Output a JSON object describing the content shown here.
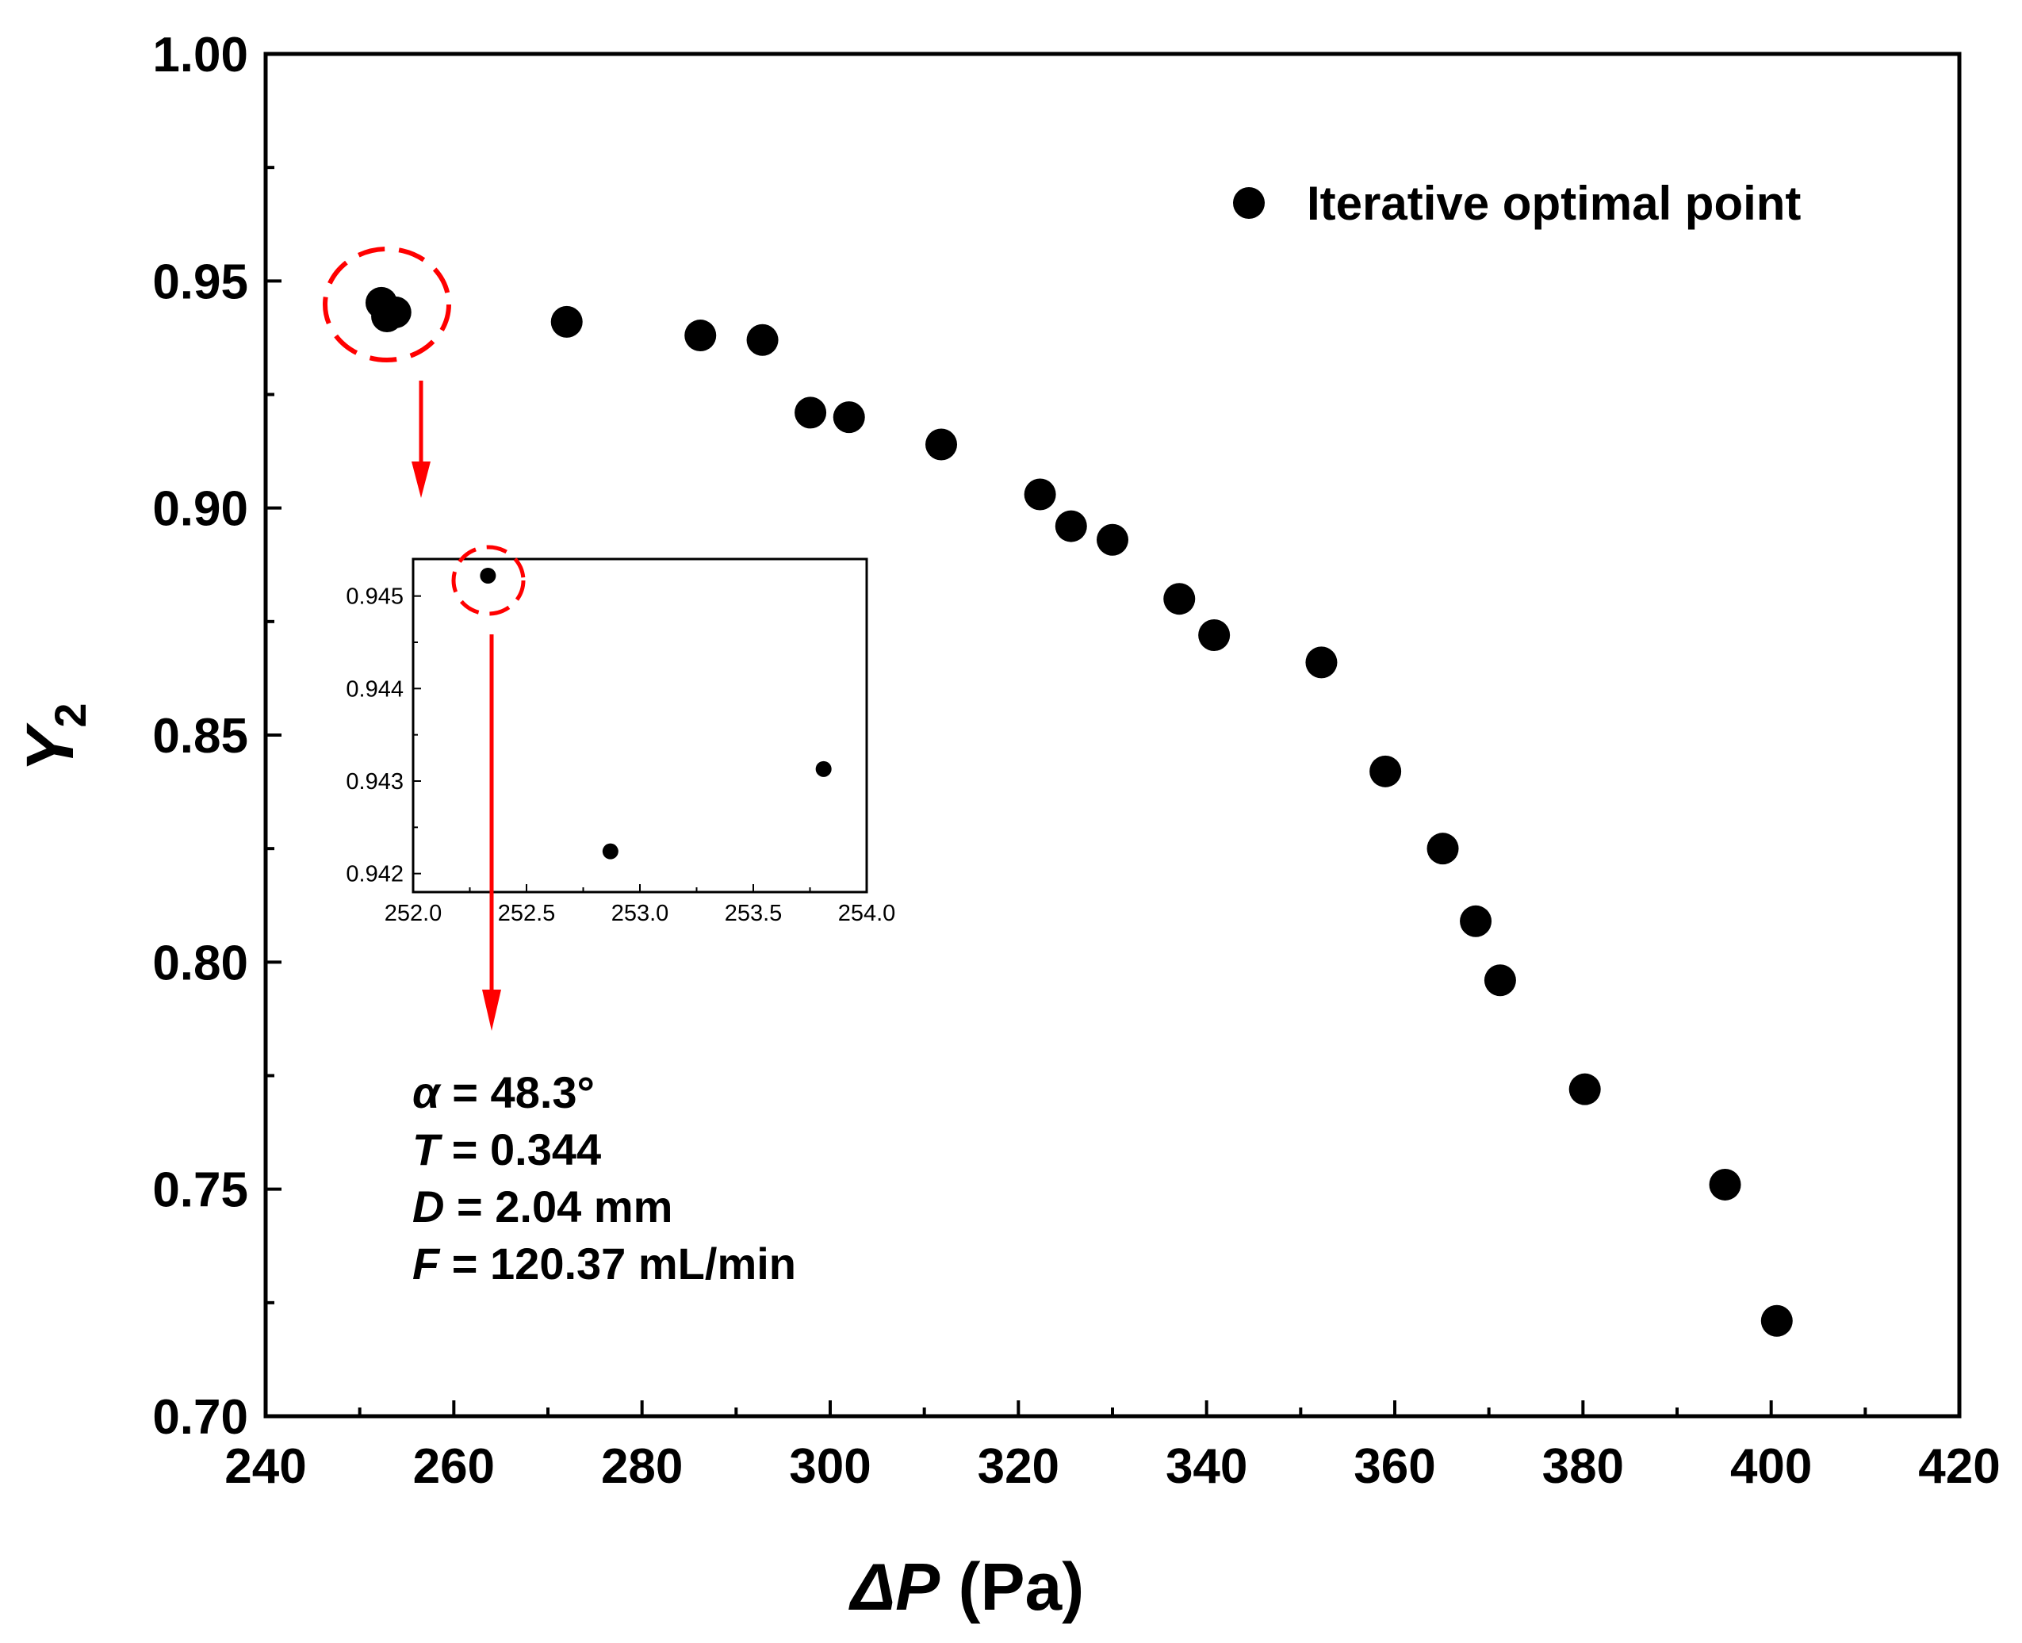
{
  "chart_data": {
    "type": "scatter",
    "xlabel_var": "ΔP",
    "xlabel_unit": " (Pa)",
    "ylabel_var": "Y",
    "ylabel_sub": "2",
    "xlim": [
      240,
      420
    ],
    "ylim": [
      0.7,
      1.0
    ],
    "x_ticks": [
      240,
      260,
      280,
      300,
      320,
      340,
      360,
      380,
      400,
      420
    ],
    "x_tick_labels": [
      "240",
      "260",
      "280",
      "300",
      "320",
      "340",
      "360",
      "380",
      "400",
      "420"
    ],
    "y_ticks": [
      0.7,
      0.75,
      0.8,
      0.85,
      0.9,
      0.95,
      1.0
    ],
    "y_tick_labels": [
      "0.70",
      "0.75",
      "0.80",
      "0.85",
      "0.90",
      "0.95",
      "1.00"
    ],
    "legend": {
      "label": "Iterative optimal point",
      "position": "top-right"
    },
    "series": [
      {
        "name": "Iterative optimal point",
        "x": [
          252.3,
          252.9,
          253.8,
          272.0,
          286.2,
          292.8,
          297.9,
          302.0,
          311.8,
          322.3,
          325.6,
          330.0,
          337.1,
          340.8,
          352.2,
          359.0,
          365.1,
          368.6,
          371.2,
          380.2,
          395.1,
          400.6
        ],
        "y": [
          0.9452,
          0.9422,
          0.9431,
          0.941,
          0.938,
          0.937,
          0.921,
          0.92,
          0.914,
          0.903,
          0.896,
          0.893,
          0.88,
          0.872,
          0.866,
          0.842,
          0.825,
          0.809,
          0.796,
          0.772,
          0.751,
          0.721
        ]
      }
    ],
    "highlight_index": 0,
    "inset": {
      "xlim": [
        252.0,
        254.0
      ],
      "ylim": [
        0.9418,
        0.9454
      ],
      "x_ticks": [
        252.0,
        252.5,
        253.0,
        253.5,
        254.0
      ],
      "x_tick_labels": [
        "252.0",
        "252.5",
        "253.0",
        "253.5",
        "254.0"
      ],
      "y_ticks": [
        0.942,
        0.943,
        0.944,
        0.945
      ],
      "y_tick_labels": [
        "0.942",
        "0.943",
        "0.944",
        "0.945"
      ],
      "x": [
        252.33,
        252.87,
        253.81
      ],
      "y": [
        0.94522,
        0.94224,
        0.94313
      ]
    },
    "annotation": [
      {
        "var": "α",
        "text": " = 48.3°"
      },
      {
        "var": "T",
        "text": " = 0.344"
      },
      {
        "var": "D",
        "text": " = 2.04 mm"
      },
      {
        "var": "F",
        "text": " = 120.37 mL/min"
      }
    ]
  },
  "colors": {
    "points": "#000000",
    "highlight": "#ff0000",
    "axis": "#000000"
  }
}
